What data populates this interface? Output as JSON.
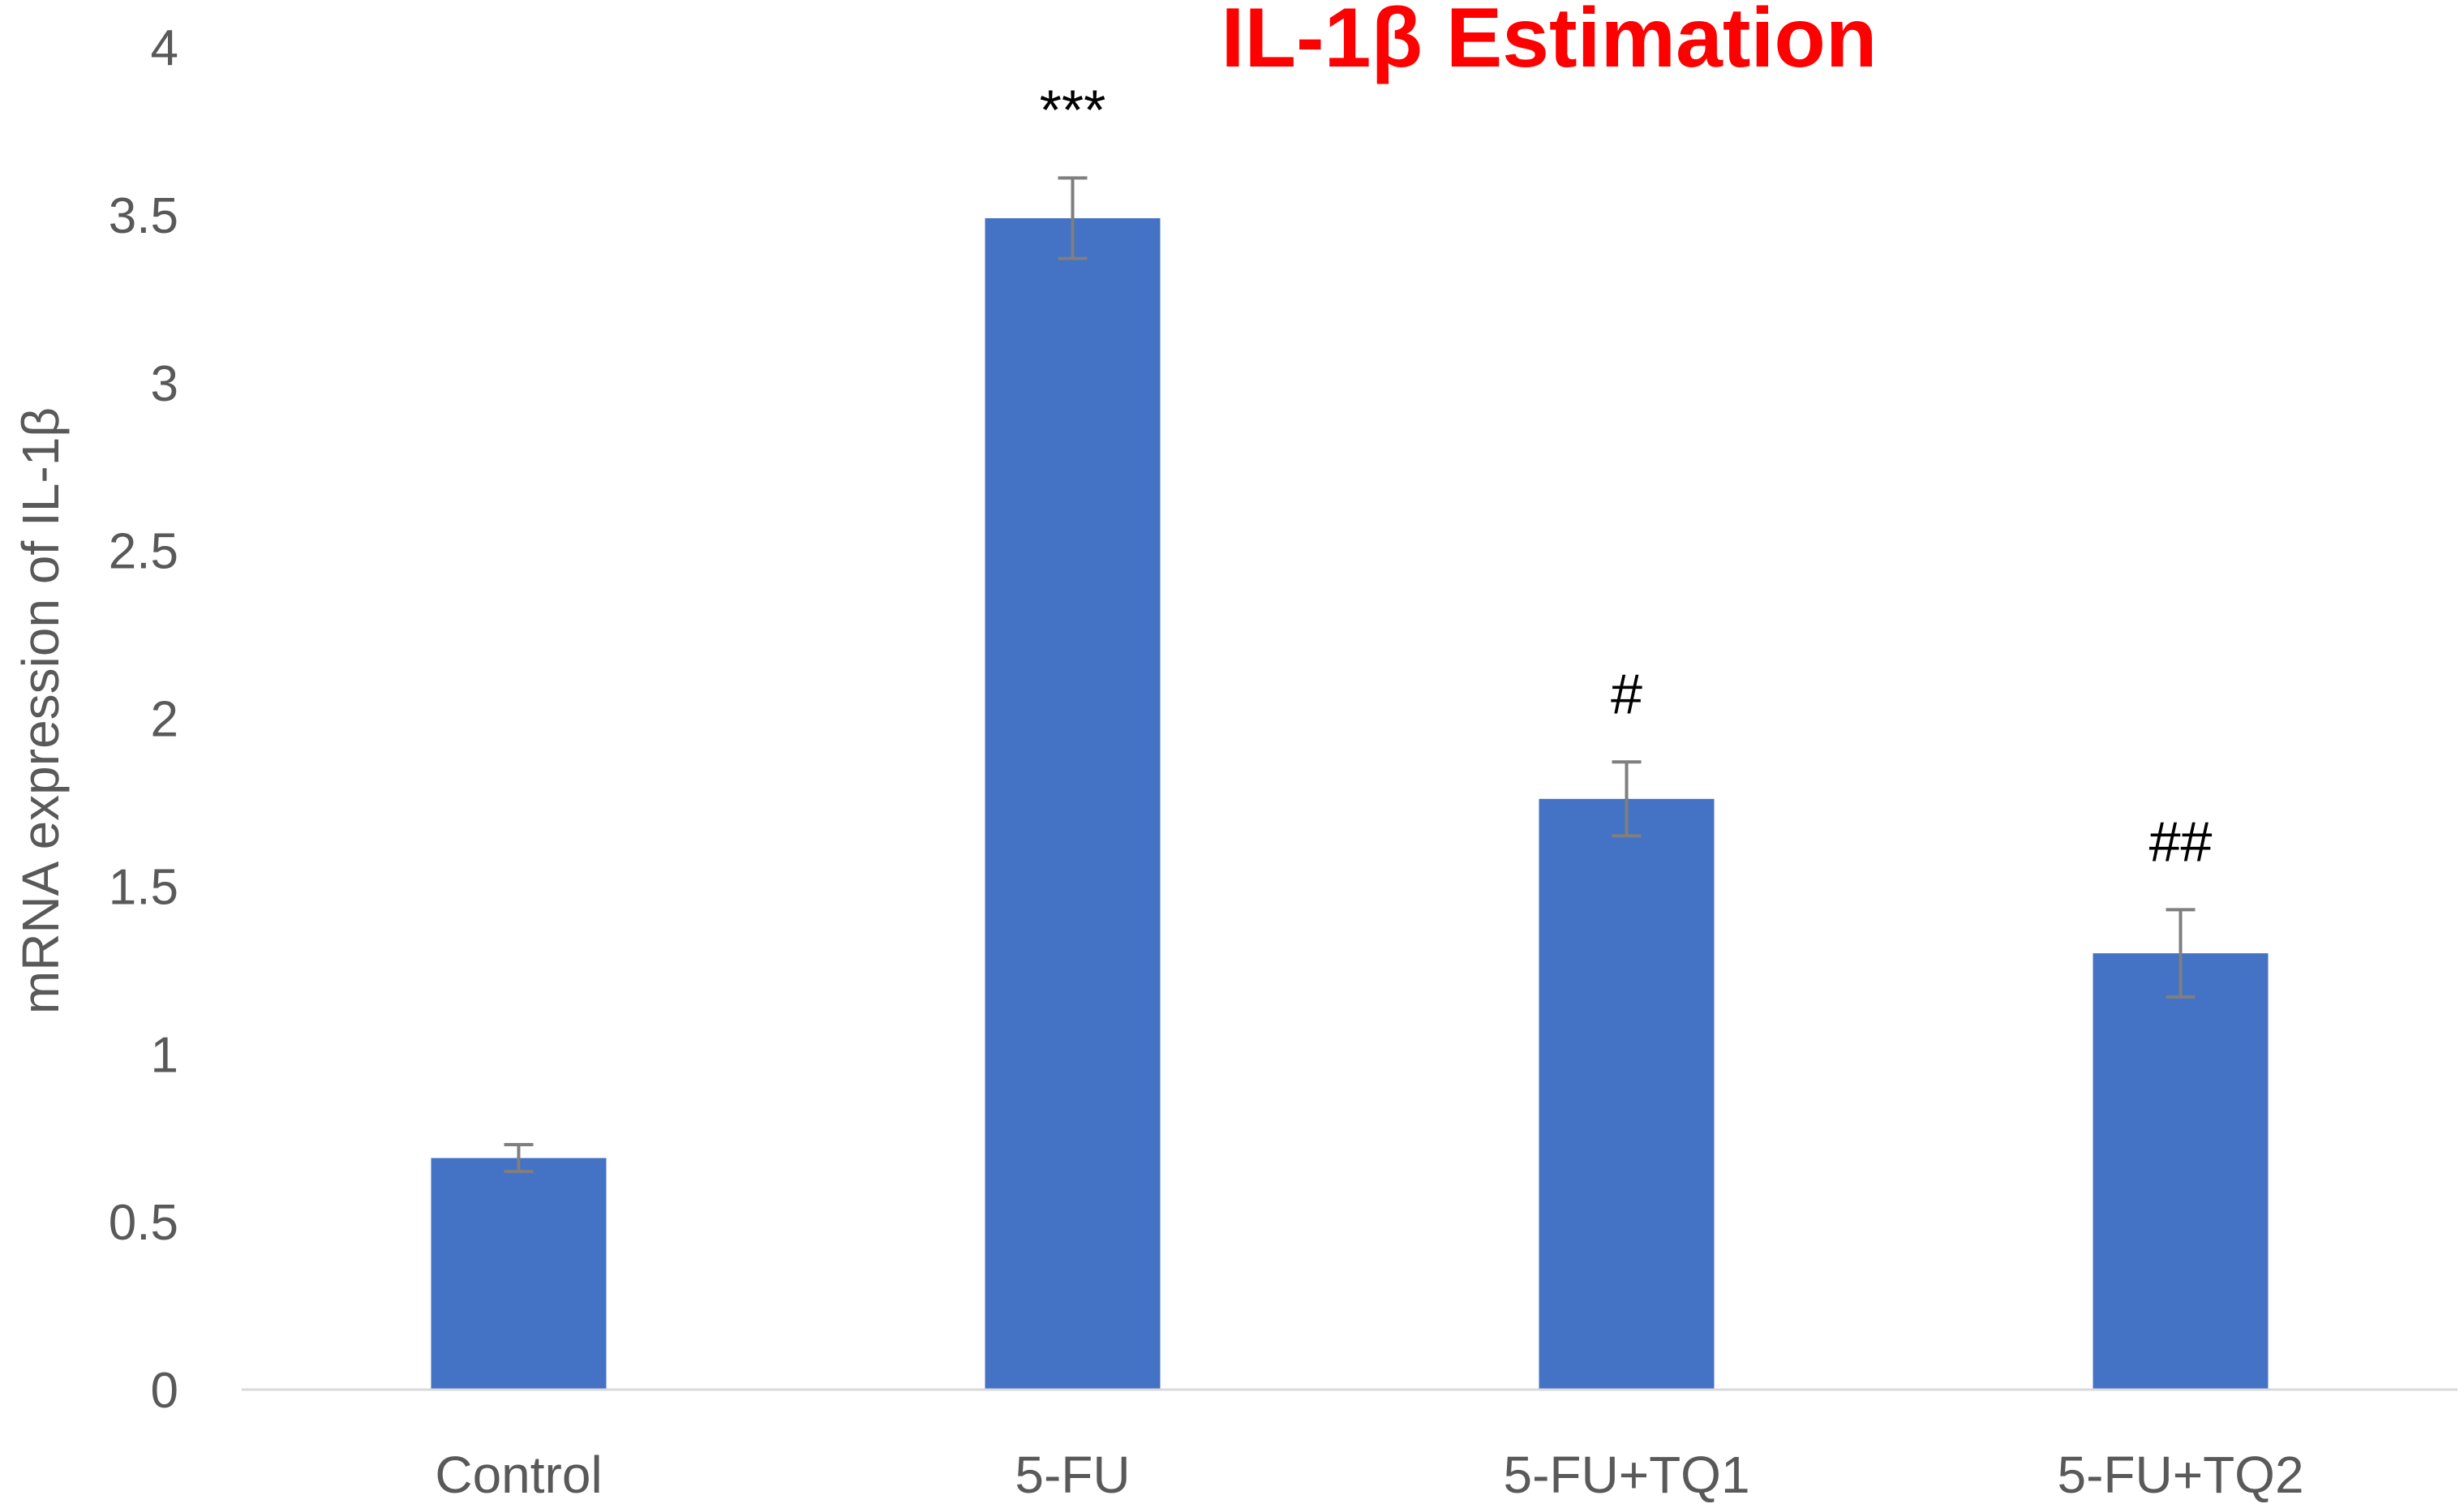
{
  "chart_data": {
    "type": "bar",
    "title": "IL-1β Estimation",
    "ylabel": "mRNA expression of IL-1β",
    "xlabel": "",
    "ylim": [
      0,
      4
    ],
    "yticks": [
      "0",
      "0.5",
      "1",
      "1.5",
      "2",
      "2.5",
      "3",
      "3.5",
      "4"
    ],
    "categories": [
      "Control",
      "5-FU",
      "5-FU+TQ1",
      "5-FU+TQ2"
    ],
    "values": [
      0.69,
      3.49,
      1.76,
      1.3
    ],
    "errors": [
      0.04,
      0.12,
      0.11,
      0.13
    ],
    "annotations": [
      "",
      "***",
      "#",
      "##"
    ],
    "grid": false,
    "colors": {
      "bar": "#4472C4",
      "error_bar": "#7F7F7F",
      "title": "#FF0000",
      "axis": "#D9D9D9"
    }
  }
}
